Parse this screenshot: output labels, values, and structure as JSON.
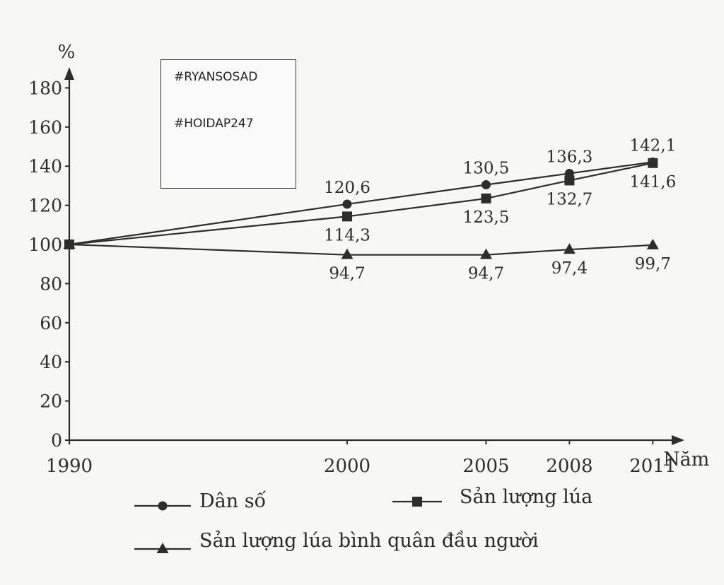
{
  "watermark": {
    "line1": "#RYANSOSAD",
    "line2": "#HOIDAP247"
  },
  "chart_data": {
    "type": "line",
    "x": [
      1990,
      2000,
      2005,
      2008,
      2011
    ],
    "x_tick_labels": [
      "1990",
      "2000",
      "2005",
      "2008",
      "2011"
    ],
    "xlabel": "Năm",
    "ylabel": "%",
    "ylim": [
      0,
      180
    ],
    "y_ticks": [
      0,
      20,
      40,
      60,
      80,
      100,
      120,
      140,
      160,
      180
    ],
    "grid": false,
    "legend_position": "bottom",
    "series": [
      {
        "name": "Dân số",
        "marker": "circle",
        "values": [
          100,
          120.6,
          130.5,
          136.3,
          142.1
        ],
        "labels": [
          "",
          "120,6",
          "130,5",
          "136,3",
          "142,1"
        ]
      },
      {
        "name": "Sản lượng lúa",
        "marker": "square",
        "values": [
          100,
          114.3,
          123.5,
          132.7,
          141.6
        ],
        "labels": [
          "",
          "114,3",
          "123,5",
          "132,7",
          "141,6"
        ]
      },
      {
        "name": "Sản lượng lúa bình quân đầu người",
        "marker": "triangle",
        "values": [
          100,
          94.7,
          94.7,
          97.4,
          99.7
        ],
        "labels": [
          "",
          "94,7",
          "94,7",
          "97,4",
          "99,7"
        ]
      }
    ]
  }
}
